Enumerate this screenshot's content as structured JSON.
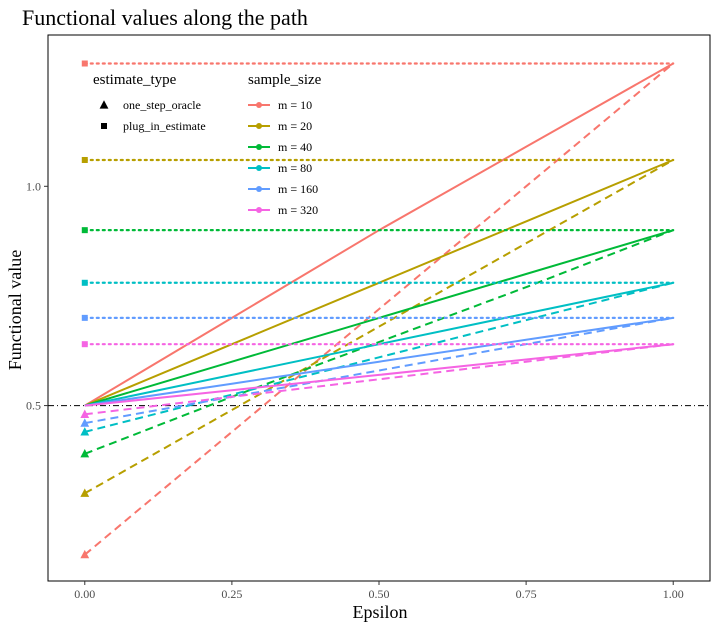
{
  "chart_data": {
    "type": "line",
    "title": "Functional values along the path",
    "xlabel": "Epsilon",
    "ylabel": "Functional value",
    "xlim": [
      -0.0625,
      1.0625
    ],
    "ylim": [
      0.1,
      1.345
    ],
    "x_ticks": [
      {
        "value": 0.0,
        "label": "0.00"
      },
      {
        "value": 0.25,
        "label": "0.25"
      },
      {
        "value": 0.5,
        "label": "0.50"
      },
      {
        "value": 0.75,
        "label": "0.75"
      },
      {
        "value": 1.0,
        "label": "1.00"
      }
    ],
    "y_ticks": [
      {
        "value": 0.5,
        "label": "0.5"
      },
      {
        "value": 1.0,
        "label": "1.0"
      }
    ],
    "reference_line": {
      "y": 0.5,
      "style": "dotdash",
      "color": "#000000"
    },
    "grid": false,
    "legend_position": "top-left",
    "legends": [
      {
        "title": "estimate_type",
        "entries": [
          {
            "label": "one_step_oracle",
            "shape": "triangle"
          },
          {
            "label": "plug_in_estimate",
            "shape": "square"
          }
        ]
      },
      {
        "title": "sample_size",
        "entries": [
          {
            "label": "m = 10",
            "color": "#F8766D"
          },
          {
            "label": "m = 20",
            "color": "#B79F00"
          },
          {
            "label": "m = 40",
            "color": "#00BA38"
          },
          {
            "label": "m = 80",
            "color": "#00BFC4"
          },
          {
            "label": "m = 160",
            "color": "#619CFF"
          },
          {
            "label": "m = 320",
            "color": "#F564E3"
          }
        ]
      }
    ],
    "x": [
      0,
      0.25,
      0.5,
      0.75,
      1.0
    ],
    "series": [
      {
        "name": "m = 10",
        "color": "#F8766D",
        "functional_path": [
          0.5,
          0.7,
          0.9,
          1.09,
          1.28
        ],
        "one_step_oracle_path": [
          0.16,
          0.44,
          0.72,
          1.0,
          1.28
        ],
        "plug_in_estimate": 1.28
      },
      {
        "name": "m = 20",
        "color": "#B79F00",
        "functional_path": [
          0.5,
          0.64,
          0.78,
          0.92,
          1.06
        ],
        "one_step_oracle_path": [
          0.3,
          0.49,
          0.68,
          0.87,
          1.06
        ],
        "plug_in_estimate": 1.06
      },
      {
        "name": "m = 40",
        "color": "#00BA38",
        "functional_path": [
          0.5,
          0.6,
          0.7,
          0.8,
          0.9
        ],
        "one_step_oracle_path": [
          0.39,
          0.52,
          0.645,
          0.77,
          0.9
        ],
        "plug_in_estimate": 0.9
      },
      {
        "name": "m = 80",
        "color": "#00BFC4",
        "functional_path": [
          0.5,
          0.57,
          0.64,
          0.71,
          0.78
        ],
        "one_step_oracle_path": [
          0.44,
          0.525,
          0.61,
          0.695,
          0.78
        ],
        "plug_in_estimate": 0.78
      },
      {
        "name": "m = 160",
        "color": "#619CFF",
        "functional_path": [
          0.5,
          0.55,
          0.6,
          0.65,
          0.7
        ],
        "one_step_oracle_path": [
          0.46,
          0.52,
          0.58,
          0.64,
          0.7
        ],
        "plug_in_estimate": 0.7
      },
      {
        "name": "m = 320",
        "color": "#F564E3",
        "functional_path": [
          0.5,
          0.535,
          0.57,
          0.605,
          0.64
        ],
        "one_step_oracle_path": [
          0.48,
          0.52,
          0.56,
          0.6,
          0.64
        ],
        "plug_in_estimate": 0.64
      }
    ]
  }
}
